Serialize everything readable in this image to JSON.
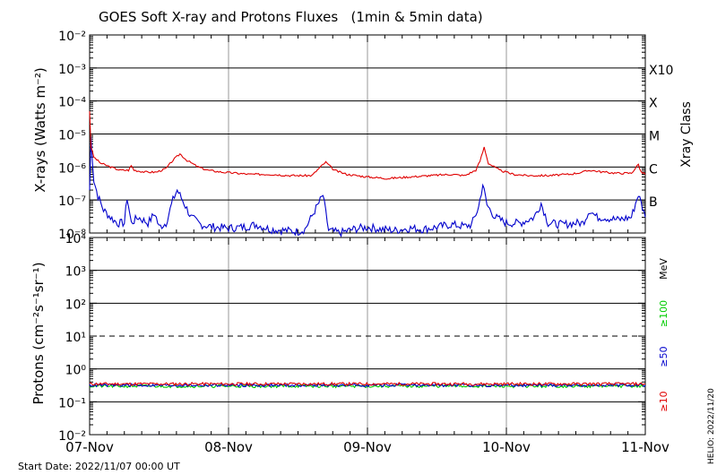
{
  "title": "GOES Soft X-ray and Protons Fluxes   (1min & 5min data)",
  "start_date": "Start Date: 2022/11/07 00:00 UT",
  "credit": "HELIO: 2022/11/20",
  "colors": {
    "xray_long": "#e00000",
    "xray_short": "#0000cc",
    "p10": "#e00000",
    "p50": "#0000cc",
    "p100": "#00cc00",
    "grid": "#000000",
    "day_grid": "#999999"
  },
  "chart_data": [
    {
      "type": "line",
      "panel": "xray",
      "ylabel": "X-rays (Watts m⁻²)",
      "y_scale": "log",
      "ylim": [
        1e-08,
        0.01
      ],
      "y_ticks": [
        "10⁻⁸",
        "10⁻⁷",
        "10⁻⁶",
        "10⁻⁵",
        "10⁻⁴",
        "10⁻³",
        "10⁻²"
      ],
      "right_label": "Xray Class",
      "classes": [
        {
          "label": "X10",
          "value": 0.001
        },
        {
          "label": "X",
          "value": 0.0001
        },
        {
          "label": "M",
          "value": 1e-05
        },
        {
          "label": "C",
          "value": 1e-06
        },
        {
          "label": "B",
          "value": 1e-07
        }
      ],
      "x_unit": "days since 2022-11-07 00:00 UT",
      "xlim": [
        0,
        4
      ],
      "series": [
        {
          "values": [
            [
              0.0,
              5e-05
            ],
            [
              0.01,
              4e-06
            ],
            [
              0.03,
              2e-06
            ],
            [
              0.08,
              1.3e-06
            ],
            [
              0.15,
              1e-06
            ],
            [
              0.22,
              8e-07
            ],
            [
              0.28,
              8e-07
            ],
            [
              0.3,
              1.1e-06
            ],
            [
              0.32,
              8e-07
            ],
            [
              0.4,
              7e-07
            ],
            [
              0.48,
              7e-07
            ],
            [
              0.55,
              9e-07
            ],
            [
              0.6,
              1.6e-06
            ],
            [
              0.65,
              2.5e-06
            ],
            [
              0.7,
              1.6e-06
            ],
            [
              0.78,
              1e-06
            ],
            [
              0.85,
              8e-07
            ],
            [
              0.95,
              7e-07
            ],
            [
              1.05,
              6.5e-07
            ],
            [
              1.15,
              6e-07
            ],
            [
              1.3,
              6e-07
            ],
            [
              1.45,
              5.5e-07
            ],
            [
              1.6,
              5.5e-07
            ],
            [
              1.65,
              9e-07
            ],
            [
              1.7,
              1.4e-06
            ],
            [
              1.76,
              8e-07
            ],
            [
              1.85,
              6e-07
            ],
            [
              2.0,
              5e-07
            ],
            [
              2.15,
              4.5e-07
            ],
            [
              2.3,
              5e-07
            ],
            [
              2.45,
              5.5e-07
            ],
            [
              2.6,
              6e-07
            ],
            [
              2.7,
              5.5e-07
            ],
            [
              2.78,
              8e-07
            ],
            [
              2.81,
              1.5e-06
            ],
            [
              2.84,
              4e-06
            ],
            [
              2.87,
              1.3e-06
            ],
            [
              2.95,
              8e-07
            ],
            [
              3.05,
              6e-07
            ],
            [
              3.15,
              5.5e-07
            ],
            [
              3.3,
              5.5e-07
            ],
            [
              3.45,
              6e-07
            ],
            [
              3.55,
              7e-07
            ],
            [
              3.6,
              8e-07
            ],
            [
              3.7,
              7e-07
            ],
            [
              3.8,
              6.5e-07
            ],
            [
              3.9,
              6.5e-07
            ],
            [
              3.95,
              1.2e-06
            ],
            [
              3.97,
              7e-07
            ],
            [
              4.0,
              6e-07
            ]
          ]
        },
        {
          "values": [
            [
              0.0,
              2e-07
            ],
            [
              0.01,
              8e-06
            ],
            [
              0.03,
              4e-07
            ],
            [
              0.06,
              1.3e-07
            ],
            [
              0.1,
              5e-08
            ],
            [
              0.15,
              3e-08
            ],
            [
              0.2,
              2e-08
            ],
            [
              0.25,
              2e-08
            ],
            [
              0.27,
              1.2e-07
            ],
            [
              0.3,
              2e-08
            ],
            [
              0.35,
              3e-08
            ],
            [
              0.42,
              2e-08
            ],
            [
              0.47,
              4e-08
            ],
            [
              0.5,
              1.5e-08
            ],
            [
              0.55,
              2e-08
            ],
            [
              0.6,
              1e-07
            ],
            [
              0.63,
              2e-07
            ],
            [
              0.68,
              8e-08
            ],
            [
              0.73,
              3e-08
            ],
            [
              0.8,
              1.8e-08
            ],
            [
              0.9,
              1.5e-08
            ],
            [
              1.0,
              1.4e-08
            ],
            [
              1.1,
              1.5e-08
            ],
            [
              1.2,
              1.8e-08
            ],
            [
              1.3,
              1.3e-08
            ],
            [
              1.4,
              1.2e-08
            ],
            [
              1.5,
              1.1e-08
            ],
            [
              1.55,
              1.3e-08
            ],
            [
              1.68,
              1.4e-07
            ],
            [
              1.72,
              1.2e-08
            ],
            [
              1.8,
              1e-08
            ],
            [
              1.9,
              1.3e-08
            ],
            [
              2.0,
              1.5e-08
            ],
            [
              2.1,
              1.3e-08
            ],
            [
              2.2,
              1.2e-08
            ],
            [
              2.3,
              1.4e-08
            ],
            [
              2.4,
              1.3e-08
            ],
            [
              2.5,
              1.5e-08
            ],
            [
              2.6,
              1.8e-08
            ],
            [
              2.7,
              1.6e-08
            ],
            [
              2.75,
              1.8e-08
            ],
            [
              2.8,
              6e-08
            ],
            [
              2.83,
              3e-07
            ],
            [
              2.86,
              7e-08
            ],
            [
              2.92,
              3e-08
            ],
            [
              3.0,
              2e-08
            ],
            [
              3.1,
              2e-08
            ],
            [
              3.2,
              3e-08
            ],
            [
              3.25,
              8e-08
            ],
            [
              3.3,
              2e-08
            ],
            [
              3.4,
              1.8e-08
            ],
            [
              3.5,
              2e-08
            ],
            [
              3.55,
              2e-08
            ],
            [
              3.6,
              5e-08
            ],
            [
              3.65,
              3e-08
            ],
            [
              3.7,
              3e-08
            ],
            [
              3.8,
              2.5e-08
            ],
            [
              3.9,
              3e-08
            ],
            [
              3.95,
              1.5e-07
            ],
            [
              4.0,
              3e-08
            ]
          ]
        }
      ]
    },
    {
      "type": "line",
      "panel": "protons",
      "ylabel": "Protons (cm⁻²s⁻¹sr⁻¹)",
      "y_scale": "log",
      "ylim": [
        0.01,
        10000
      ],
      "y_ticks": [
        "10⁻²",
        "10⁻¹",
        "10⁰",
        "10¹",
        "10²",
        "10³",
        "10⁴"
      ],
      "threshold": 10,
      "unit_label": "MeV",
      "x_unit": "days since 2022-11-07 00:00 UT",
      "xlim": [
        0,
        4
      ],
      "x_ticks": [
        "07-Nov",
        "08-Nov",
        "09-Nov",
        "10-Nov",
        "11-Nov"
      ],
      "series": [
        {
          "name": "≥10",
          "approx_value": 0.35,
          "values": [
            [
              0,
              0.35
            ],
            [
              4,
              0.35
            ]
          ]
        },
        {
          "name": "≥50",
          "approx_value": 0.32,
          "values": [
            [
              0,
              0.32
            ],
            [
              4,
              0.32
            ]
          ]
        },
        {
          "name": "≥100",
          "approx_value": 0.3,
          "values": [
            [
              0,
              0.3
            ],
            [
              4,
              0.3
            ]
          ]
        }
      ]
    }
  ]
}
